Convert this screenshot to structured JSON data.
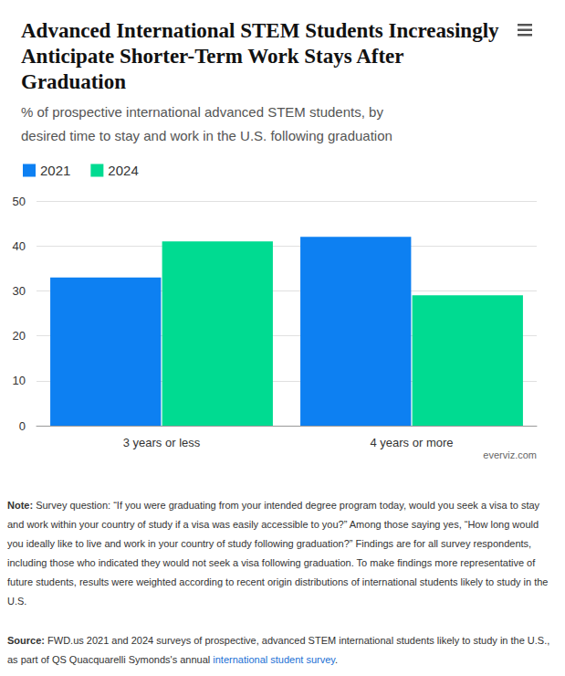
{
  "chart_data": {
    "type": "bar",
    "title": "Advanced International STEM Students Increasingly Anticipate Shorter-Term Work Stays After Graduation",
    "subtitle": "% of prospective international advanced STEM students, by desired time to stay and work in the U.S. following graduation",
    "categories": [
      "3 years or less",
      "4 years or more"
    ],
    "series": [
      {
        "name": "2021",
        "color": "#0d80f2",
        "values": [
          33,
          42
        ]
      },
      {
        "name": "2024",
        "color": "#00db91",
        "values": [
          41,
          29
        ]
      }
    ],
    "ylim": [
      0,
      50
    ],
    "yticks": [
      0,
      10,
      20,
      30,
      40,
      50
    ],
    "grid": true,
    "legend": "top-left",
    "credit": "everviz.com",
    "note": {
      "label": "Note:",
      "text": "Survey question: “If you were graduating from your intended degree program today, would you seek a visa to stay and work within your country of study  if a visa was easily accessible to you?” Among those saying yes, “How long would you ideally like to live and work in your country of study following graduation?” Findings are for all survey respondents, including those who indicated they would not seek a visa following graduation. To make findings more representative of future students, results were weighted according to recent origin distributions of international students likely to study in  the U.S."
    },
    "source": {
      "label": "Source:",
      "text": "FWD.us 2021 and 2024 surveys of prospective, advanced STEM international students likely to study in the U.S., as part of QS Quacquarelli Symonds's annual ",
      "link": "international student survey",
      "end": "."
    }
  }
}
